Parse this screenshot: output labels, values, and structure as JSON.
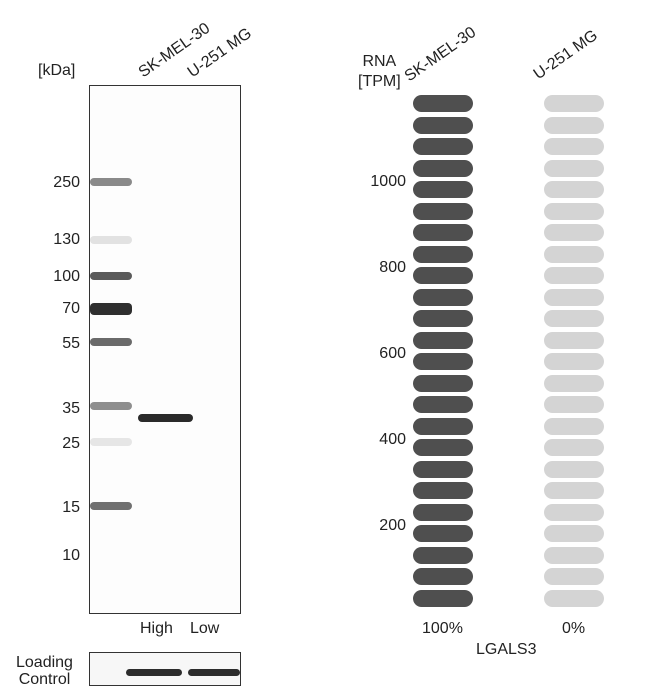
{
  "western_blot": {
    "kda_label": "[kDa]",
    "lanes": [
      "SK-MEL-30",
      "U-251 MG"
    ],
    "markers": [
      "250",
      "130",
      "100",
      "70",
      "55",
      "35",
      "25",
      "15",
      "10"
    ],
    "lane_expression": [
      "High",
      "Low"
    ],
    "loading_control": "Loading\nControl"
  },
  "rna_chart": {
    "unit_label": "RNA\n[TPM]",
    "cell_lines": [
      "SK-MEL-30",
      "U-251 MG"
    ],
    "percentages": [
      "100%",
      "0%"
    ],
    "gene": "LGALS3",
    "ticks": [
      "1000",
      "800",
      "600",
      "400",
      "200"
    ],
    "colors": {
      "high": "#4f4f4f",
      "low": "#d4d4d4"
    }
  },
  "chart_data": {
    "type": "bar",
    "categories": [
      "SK-MEL-30",
      "U-251 MG"
    ],
    "series": [
      {
        "values": [
          100,
          0
        ]
      }
    ],
    "xlabel": "LGALS3",
    "ylabel": "RNA [TPM]",
    "ytick_labels": [
      "200",
      "400",
      "600",
      "800",
      "1000"
    ],
    "value_labels": [
      "100%",
      "0%"
    ],
    "total_segments": 24,
    "filled_segments": [
      24,
      0
    ]
  }
}
